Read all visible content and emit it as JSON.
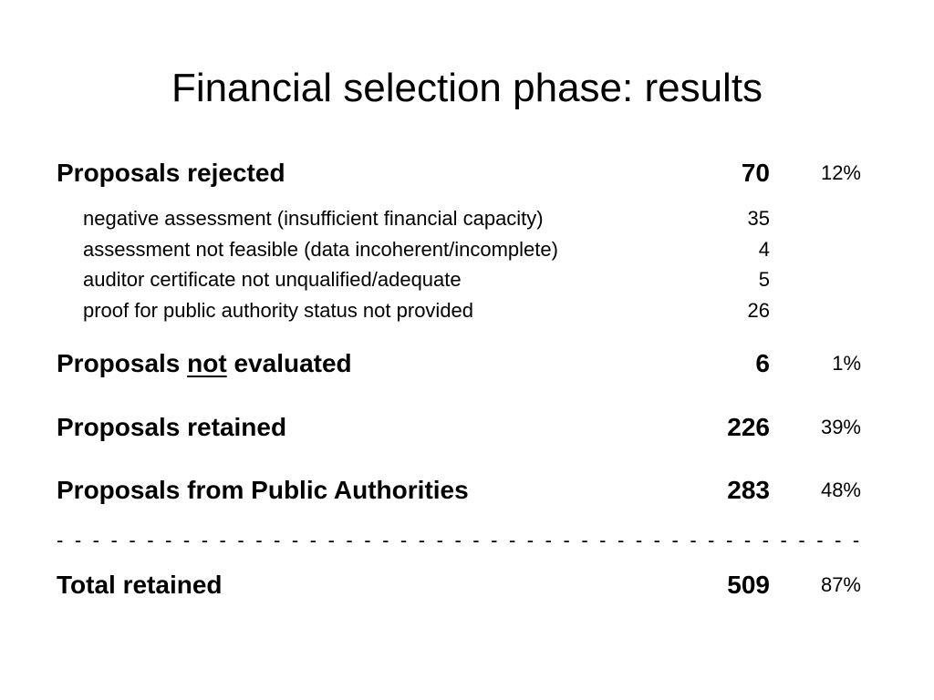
{
  "title": "Financial selection phase: results",
  "rejected": {
    "label": "Proposals rejected",
    "count": "70",
    "pct": "12%",
    "reasons": [
      {
        "label": "negative assessment (insufficient financial capacity)",
        "count": "35"
      },
      {
        "label": "assessment not feasible (data incoherent/incomplete)",
        "count": "4"
      },
      {
        "label": "auditor certificate not unqualified/adequate",
        "count": "5"
      },
      {
        "label": "proof for public authority status not provided",
        "count": "26"
      }
    ]
  },
  "not_evaluated": {
    "label_before": "Proposals ",
    "label_emph": "not",
    "label_after": " evaluated",
    "count": "6",
    "pct": "1%"
  },
  "retained": {
    "label": "Proposals retained",
    "count": "226",
    "pct": "39%"
  },
  "public_authorities": {
    "label": "Proposals from Public Authorities",
    "count": "283",
    "pct": "48%"
  },
  "total": {
    "label": "Total retained",
    "count": "509",
    "pct": "87%"
  }
}
